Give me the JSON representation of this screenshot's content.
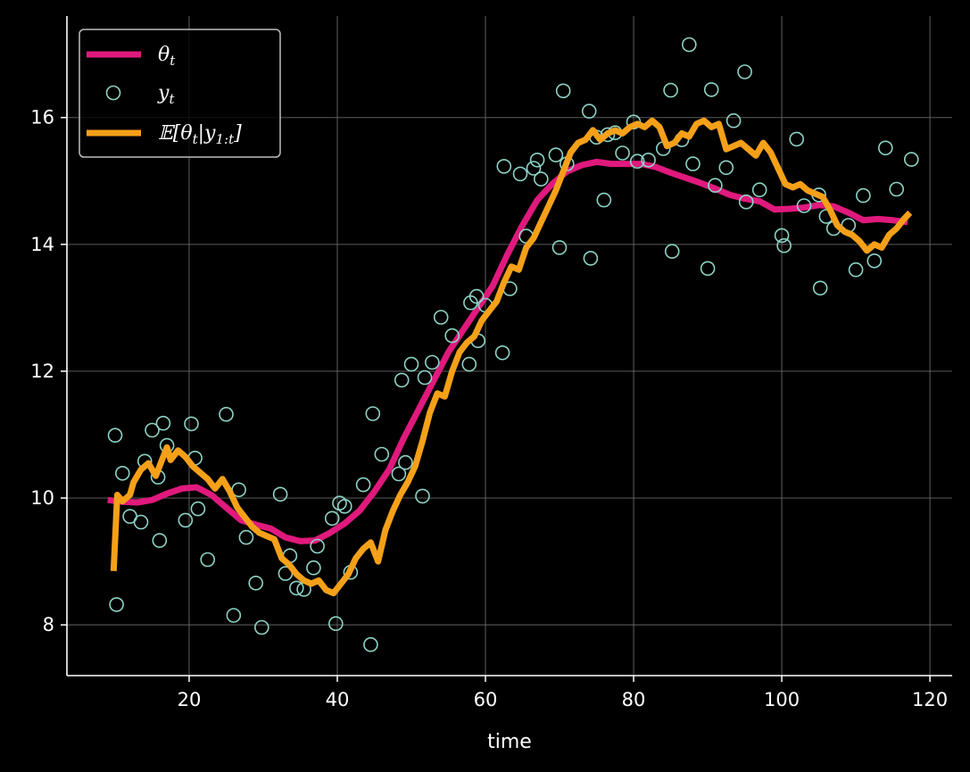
{
  "chart_data": {
    "type": "line",
    "xlabel": "time",
    "ylabel": "",
    "title": "",
    "xlim": [
      3.5,
      123
    ],
    "ylim": [
      7.2,
      17.6
    ],
    "xticks": [
      20,
      40,
      60,
      80,
      100,
      120
    ],
    "yticks": [
      8,
      10,
      12,
      14,
      16
    ],
    "grid": true,
    "legend_position": "upper-left",
    "colors": {
      "theta": "#e0197d",
      "y": "#8dd3c7",
      "expectation": "#f5a019",
      "grid": "#6b6b6b",
      "axes": "#ffffff",
      "background": "#000000"
    },
    "legend": [
      {
        "key": "theta",
        "label_main": "θ",
        "label_sub": "t",
        "label_tail": ""
      },
      {
        "key": "y",
        "label_main": "y",
        "label_sub": "t",
        "label_tail": ""
      },
      {
        "key": "expectation",
        "label_main": "𝔼[θ",
        "label_sub": "t",
        "label_tail": "|y",
        "label_sub2": "1:t",
        "label_end": "]"
      }
    ],
    "series": [
      {
        "name": "θ_t",
        "key": "theta",
        "kind": "line",
        "x": [
          9,
          11,
          13,
          15,
          17,
          19,
          21,
          23,
          25,
          27,
          29,
          31,
          33,
          35,
          37,
          39,
          41,
          43,
          45,
          47,
          49,
          51,
          53,
          55,
          57,
          59,
          61,
          63,
          65,
          67,
          69,
          71,
          73,
          75,
          77,
          79,
          81,
          83,
          85,
          87,
          89,
          91,
          93,
          95,
          97,
          99,
          101,
          103,
          105,
          107,
          109,
          111,
          113,
          115,
          117
        ],
        "y": [
          9.97,
          9.94,
          9.93,
          9.97,
          10.07,
          10.15,
          10.17,
          10.05,
          9.85,
          9.65,
          9.58,
          9.52,
          9.38,
          9.32,
          9.33,
          9.45,
          9.6,
          9.8,
          10.1,
          10.45,
          10.95,
          11.4,
          11.85,
          12.3,
          12.65,
          13.0,
          13.35,
          13.85,
          14.3,
          14.7,
          14.95,
          15.15,
          15.25,
          15.3,
          15.27,
          15.27,
          15.27,
          15.22,
          15.13,
          15.05,
          14.97,
          14.88,
          14.78,
          14.72,
          14.68,
          14.55,
          14.56,
          14.58,
          14.62,
          14.6,
          14.5,
          14.38,
          14.4,
          14.38,
          14.35
        ]
      },
      {
        "name": "y_t",
        "key": "y",
        "kind": "scatter",
        "x": [
          10,
          10.2,
          11,
          12,
          13.5,
          14,
          15,
          15.8,
          16,
          16.5,
          17,
          19.5,
          20.3,
          20.8,
          21.2,
          22.5,
          25,
          26,
          26.7,
          27.7,
          29,
          29.8,
          32.3,
          33,
          33.6,
          34.5,
          35.5,
          36.8,
          37.3,
          39.3,
          39.8,
          40.3,
          41,
          41.8,
          43.5,
          44.5,
          44.8,
          46,
          48.3,
          48.7,
          49.2,
          50,
          51.5,
          51.8,
          52.8,
          54,
          55.5,
          57.8,
          58,
          58.8,
          59,
          60,
          62.3,
          62.5,
          63.3,
          64.7,
          65.5,
          66.5,
          67,
          67.5,
          69.5,
          70,
          70.5,
          71,
          74,
          74.2,
          75,
          76,
          76.5,
          77.5,
          78.5,
          80,
          80.5,
          82,
          84,
          85,
          85.2,
          86.5,
          87.5,
          88,
          90,
          90.5,
          91,
          92.5,
          93.5,
          95,
          95.2,
          97,
          100,
          100.3,
          102,
          103,
          105,
          105.2,
          106,
          107,
          109,
          110,
          111,
          112.5,
          114,
          115.5,
          117.5
        ],
        "y": [
          10.99,
          8.32,
          10.39,
          9.71,
          9.62,
          10.58,
          11.07,
          10.33,
          9.33,
          11.18,
          10.83,
          9.65,
          11.17,
          10.63,
          9.83,
          9.03,
          11.32,
          8.15,
          10.13,
          9.38,
          8.66,
          7.96,
          10.06,
          8.81,
          9.09,
          8.58,
          8.56,
          8.9,
          9.24,
          9.68,
          8.02,
          9.92,
          9.87,
          8.83,
          10.21,
          7.69,
          11.33,
          10.69,
          10.38,
          11.86,
          10.56,
          12.11,
          10.03,
          11.9,
          12.14,
          12.85,
          12.56,
          12.11,
          13.08,
          13.18,
          12.48,
          13.04,
          12.29,
          15.23,
          13.3,
          15.11,
          14.13,
          15.2,
          15.33,
          15.03,
          15.41,
          13.95,
          16.42,
          15.27,
          16.1,
          13.78,
          15.69,
          14.7,
          15.73,
          15.76,
          15.44,
          15.93,
          15.31,
          15.33,
          15.51,
          16.43,
          13.89,
          15.65,
          17.15,
          15.27,
          13.62,
          16.44,
          14.93,
          15.21,
          15.95,
          16.72,
          14.67,
          14.86,
          14.14,
          13.98,
          15.66,
          14.61,
          14.78,
          13.31,
          14.44,
          14.25,
          14.3,
          13.6,
          14.77,
          13.74,
          15.52,
          14.87,
          15.34
        ]
      },
      {
        "name": "𝔼[θ_t|y_1:t]",
        "key": "expectation",
        "kind": "line",
        "x": [
          9.8,
          10.3,
          11,
          12,
          12.5,
          13.5,
          14.5,
          15.5,
          16.5,
          17,
          17.5,
          18.5,
          19.5,
          20.5,
          21.5,
          22.5,
          23.5,
          24.5,
          25.5,
          26.5,
          27.5,
          28.5,
          29.5,
          30.5,
          31.5,
          32.5,
          33.5,
          34.5,
          35.5,
          36.5,
          37.5,
          38.5,
          39.5,
          40.5,
          41.5,
          42.5,
          43.5,
          44.5,
          45.5,
          46.5,
          47.5,
          48.5,
          49.5,
          50.5,
          51.5,
          52.5,
          53.5,
          54.5,
          55.5,
          56.5,
          57.5,
          58.5,
          59.5,
          60.5,
          61.5,
          62.5,
          63.5,
          64.5,
          65.5,
          66.5,
          67.5,
          68.5,
          69.5,
          70.5,
          71.5,
          72.5,
          73.5,
          74.5,
          75.5,
          76.5,
          77.5,
          78.5,
          79.5,
          80.5,
          81.5,
          82.5,
          83.5,
          84.5,
          85.5,
          86.5,
          87.5,
          88.5,
          89.5,
          90.5,
          91.5,
          92.5,
          93.5,
          94.5,
          95.5,
          96.5,
          97.5,
          98.5,
          99.5,
          100.5,
          101.5,
          102.5,
          103.5,
          104.5,
          105.5,
          106.5,
          107.5,
          108.5,
          109.5,
          110.5,
          111.5,
          112.5,
          113.5,
          114.5,
          115.5,
          116.5,
          117.3
        ],
        "y": [
          8.85,
          10.05,
          9.95,
          10.05,
          10.25,
          10.45,
          10.55,
          10.35,
          10.65,
          10.8,
          10.6,
          10.75,
          10.65,
          10.5,
          10.4,
          10.3,
          10.15,
          10.3,
          10.1,
          9.85,
          9.7,
          9.55,
          9.45,
          9.4,
          9.35,
          9.05,
          8.95,
          8.8,
          8.7,
          8.65,
          8.7,
          8.55,
          8.5,
          8.65,
          8.8,
          9.05,
          9.2,
          9.3,
          9.0,
          9.5,
          9.8,
          10.05,
          10.25,
          10.5,
          10.9,
          11.35,
          11.65,
          11.6,
          12.0,
          12.3,
          12.45,
          12.55,
          12.8,
          12.95,
          13.1,
          13.4,
          13.65,
          13.6,
          13.95,
          14.1,
          14.35,
          14.6,
          14.85,
          15.15,
          15.45,
          15.6,
          15.65,
          15.8,
          15.65,
          15.75,
          15.8,
          15.75,
          15.85,
          15.9,
          15.85,
          15.95,
          15.85,
          15.55,
          15.6,
          15.75,
          15.7,
          15.9,
          15.95,
          15.85,
          15.9,
          15.5,
          15.55,
          15.6,
          15.5,
          15.4,
          15.6,
          15.45,
          15.2,
          14.95,
          14.9,
          14.95,
          14.85,
          14.8,
          14.75,
          14.55,
          14.3,
          14.2,
          14.15,
          14.05,
          13.9,
          14.0,
          13.95,
          14.15,
          14.25,
          14.4,
          14.5
        ]
      }
    ]
  }
}
